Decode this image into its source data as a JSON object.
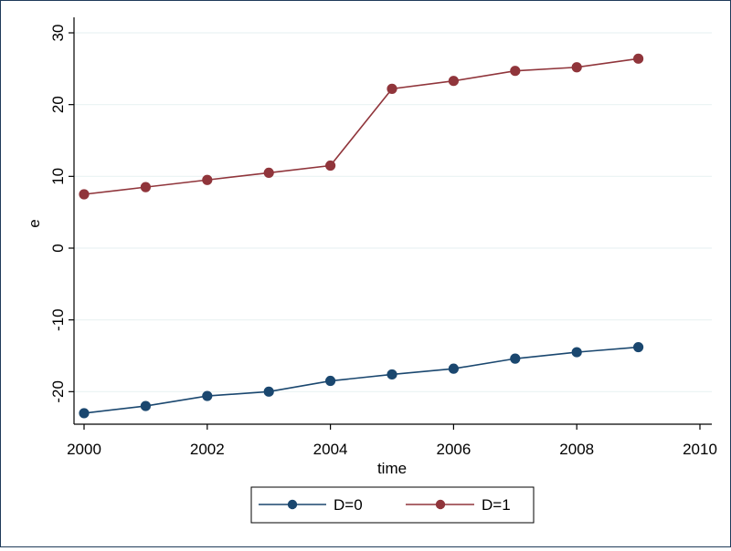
{
  "chart_data": {
    "type": "line",
    "title": "",
    "xlabel": "time",
    "ylabel": "e",
    "xlim": [
      2000,
      2010
    ],
    "ylim": [
      -25,
      30
    ],
    "x_ticks": [
      2000,
      2002,
      2004,
      2006,
      2008,
      2010
    ],
    "y_ticks": [
      -20,
      -10,
      0,
      10,
      20,
      30
    ],
    "grid": "horizontal",
    "legend_position": "bottom",
    "x": [
      2000,
      2001,
      2002,
      2003,
      2004,
      2005,
      2006,
      2007,
      2008,
      2009
    ],
    "series": [
      {
        "name": "D=0",
        "color": "#1a476f",
        "values": [
          -23.0,
          -22.0,
          -20.6,
          -20.0,
          -18.5,
          -17.6,
          -16.8,
          -15.4,
          -14.5,
          -13.8
        ]
      },
      {
        "name": "D=1",
        "color": "#90353b",
        "values": [
          7.5,
          8.5,
          9.5,
          10.5,
          11.5,
          22.2,
          23.3,
          24.7,
          25.2,
          26.4
        ]
      }
    ]
  }
}
